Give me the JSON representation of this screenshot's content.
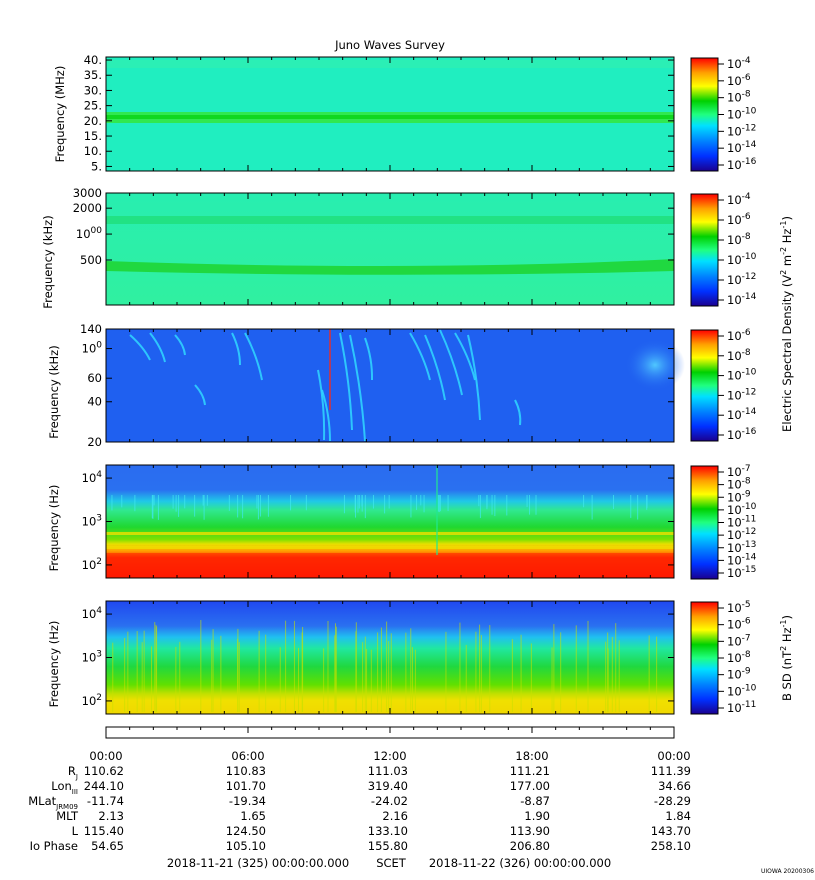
{
  "title": "Juno Waves Survey",
  "footer_credit": "UIOWA 20200306",
  "scet_line": {
    "start": "2018-11-21 (325) 00:00:00.000",
    "label": "SCET",
    "end": "2018-11-22 (326) 00:00:00.000"
  },
  "colors": {
    "palette": [
      "#1a0090",
      "#0030ff",
      "#0080ff",
      "#00e0ff",
      "#20ff80",
      "#00d000",
      "#ffff00",
      "#ffa000",
      "#ff0000"
    ]
  },
  "chart_data": [
    {
      "type": "heatmap",
      "name": "panel-hfr-high",
      "ylabel": "Frequency (MHz)",
      "yscale": "linear",
      "ylim": [
        3.5,
        41
      ],
      "yticks": [
        "40.",
        "35.",
        "30.",
        "25.",
        "20.",
        "15.",
        "10.",
        "5."
      ],
      "ytick_values": [
        40,
        35,
        30,
        25,
        20,
        15,
        10,
        5
      ],
      "colorbar_ticks": [
        "10-4",
        "10-6",
        "10-8",
        "10-10",
        "10-12",
        "10-14",
        "10-16"
      ],
      "feature": "green horizontal band near 21 MHz",
      "background": "#20eec0"
    },
    {
      "type": "heatmap",
      "name": "panel-hfr-low",
      "ylabel": "Frequency (kHz)",
      "yscale": "log",
      "ylim": [
        150,
        3000
      ],
      "yticks": [
        "3000",
        "2000",
        "1000",
        "500"
      ],
      "ytick_values": [
        3000,
        2000,
        1000,
        500
      ],
      "colorbar_ticks": [
        "10-4",
        "10-6",
        "10-8",
        "10-10",
        "10-12",
        "10-14"
      ],
      "colorbar_label": "Electric Spectral Density (V2 m-2 Hz-1)",
      "feature": "green bands near 1500 kHz and 420 kHz",
      "background": "#2af0a8"
    },
    {
      "type": "heatmap",
      "name": "panel-lfr-high",
      "ylabel": "Frequency (kHz)",
      "yscale": "log",
      "ylim": [
        20,
        140
      ],
      "yticks": [
        "140",
        "100",
        "60",
        "40",
        "20"
      ],
      "ytick_values": [
        140,
        100,
        60,
        40,
        20
      ],
      "colorbar_ticks": [
        "10-6",
        "10-8",
        "10-10",
        "10-12",
        "10-14",
        "10-16"
      ],
      "feature": "blue background with cyan emission arcs; red vertical line near 09:40",
      "background": "#1f60f0"
    },
    {
      "type": "heatmap",
      "name": "panel-lfr-low",
      "ylabel": "Frequency (Hz)",
      "yscale": "log",
      "ylim": [
        50,
        20000
      ],
      "yticks": [
        "10^4",
        "10^3",
        "10^2"
      ],
      "ytick_values": [
        10000,
        1000,
        100
      ],
      "colorbar_ticks": [
        "10-7",
        "10-8",
        "10-9",
        "10-10",
        "10-11",
        "10-12",
        "10-13",
        "10-14",
        "10-15"
      ],
      "feature": "red/orange at lowest frequencies grading to green and blue above 3 kHz",
      "background": "#2a6cf0"
    },
    {
      "type": "heatmap",
      "name": "panel-magnetic",
      "ylabel": "Frequency (Hz)",
      "yscale": "log",
      "ylim": [
        50,
        20000
      ],
      "yticks": [
        "10^4",
        "10^3",
        "10^2"
      ],
      "ytick_values": [
        10000,
        1000,
        100
      ],
      "colorbar_ticks": [
        "10-5",
        "10-6",
        "10-7",
        "10-8",
        "10-9",
        "10-10",
        "10-11"
      ],
      "colorbar_label": "B SD (nT2 Hz-1)",
      "feature": "blue above 5 kHz, green 200 Hz–2 kHz, yellow below 150 Hz",
      "background": "#2050f0"
    }
  ],
  "time_axis": {
    "labels": [
      "00:00",
      "06:00",
      "12:00",
      "18:00",
      "00:00"
    ],
    "hours": [
      0,
      6,
      12,
      18,
      24
    ],
    "minor_ticks_per_hour": 1
  },
  "ephemeris": {
    "rows": [
      {
        "label": "RJ",
        "values": [
          "110.62",
          "110.83",
          "111.03",
          "111.21",
          "111.39"
        ]
      },
      {
        "label": "LonIII",
        "values": [
          "244.10",
          "101.70",
          "319.40",
          "177.00",
          "34.66"
        ]
      },
      {
        "label": "MLatJRM09",
        "values": [
          "-11.74",
          "-19.34",
          "-24.02",
          "-8.87",
          "-28.29"
        ]
      },
      {
        "label": "MLT",
        "values": [
          "2.13",
          "1.65",
          "2.16",
          "1.90",
          "1.84"
        ]
      },
      {
        "label": "L",
        "values": [
          "115.40",
          "124.50",
          "133.10",
          "113.90",
          "143.70"
        ]
      },
      {
        "label": "Io Phase",
        "values": [
          "54.65",
          "105.10",
          "155.80",
          "206.80",
          "258.10"
        ]
      }
    ]
  }
}
